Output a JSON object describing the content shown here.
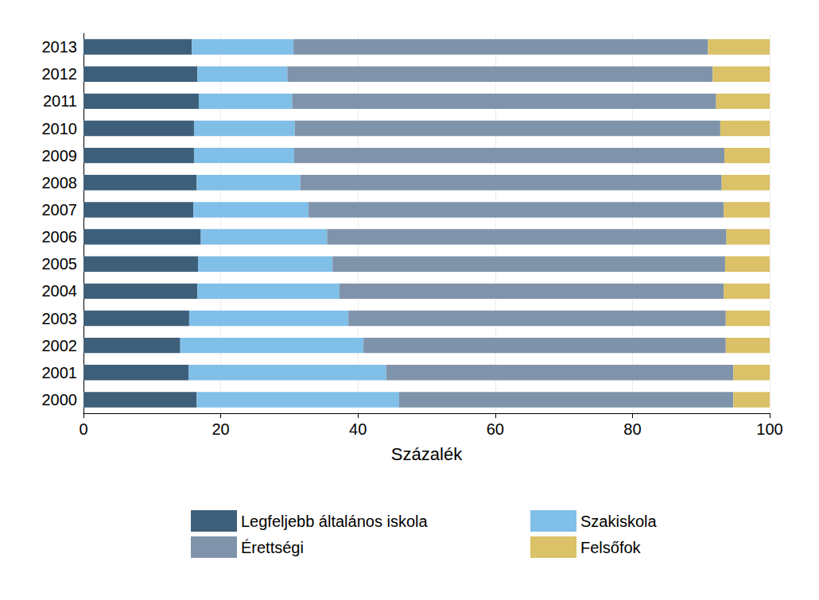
{
  "chart_data": {
    "type": "bar",
    "orientation": "horizontal",
    "stacked": true,
    "grid": true,
    "legend": "bottom",
    "x_label": "Százalék",
    "categories": [
      "2000",
      "2001",
      "2002",
      "2003",
      "2004",
      "2005",
      "2006",
      "2007",
      "2008",
      "2009",
      "2010",
      "2011",
      "2012",
      "2013"
    ],
    "xlim": [
      0,
      100
    ],
    "xticks": [
      0,
      20,
      40,
      60,
      80,
      100
    ],
    "series": [
      {
        "name": "Legfeljebb általános iskola",
        "color": "#3d5f7a",
        "values": [
          16.5,
          15.3,
          14.1,
          15.4,
          16.6,
          16.7,
          17.1,
          16.0,
          16.5,
          16.1,
          16.1,
          16.8,
          16.6,
          15.8
        ]
      },
      {
        "name": "Szakiskola",
        "color": "#80bfe8",
        "values": [
          29.5,
          28.8,
          26.7,
          23.2,
          20.7,
          19.6,
          18.4,
          16.8,
          15.1,
          14.6,
          14.7,
          13.6,
          13.1,
          14.8
        ]
      },
      {
        "name": "Érettségi",
        "color": "#7f94ab",
        "values": [
          48.7,
          50.6,
          52.8,
          55.0,
          56.0,
          57.2,
          58.2,
          60.5,
          61.4,
          62.7,
          62.0,
          61.8,
          62.0,
          60.4
        ]
      },
      {
        "name": "Felsőfok",
        "color": "#dbc167",
        "values": [
          5.3,
          5.3,
          6.4,
          6.4,
          6.7,
          6.5,
          6.3,
          6.7,
          7.0,
          6.6,
          7.2,
          7.8,
          8.3,
          9.0
        ]
      }
    ]
  }
}
